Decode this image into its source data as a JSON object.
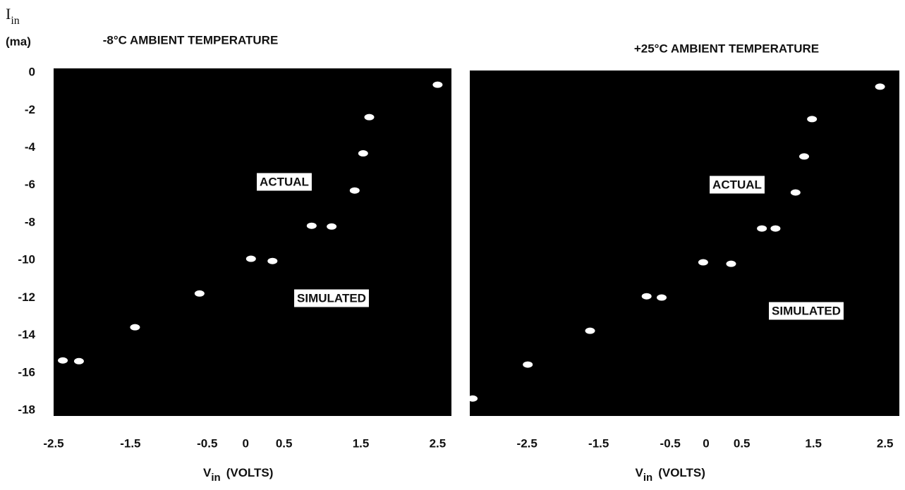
{
  "chart_data": [
    {
      "type": "scatter",
      "title": "-8°C AMBIENT TEMPERATURE",
      "ylabel": "I",
      "ylabel_sub": "in",
      "ylabel_unit": "(ma)",
      "xlabel": "V",
      "xlabel_sub": "in",
      "xlabel_unit": "(VOLTS)",
      "annotations": [
        "ACTUAL",
        "SIMULATED"
      ],
      "x": [
        2.5,
        1.61,
        1.53,
        1.42,
        0.86,
        1.12,
        0.07,
        0.35,
        -0.6,
        -1.44,
        -2.38,
        -2.17
      ],
      "values": [
        -0.64,
        -2.37,
        -4.3,
        -6.28,
        -8.16,
        -8.2,
        -9.92,
        -10.04,
        -11.77,
        -13.57,
        -15.34,
        -15.38
      ],
      "color": "#ffffff",
      "background": "#000000",
      "xlim": [
        -2.5,
        2.68
      ],
      "ylim": [
        -18.3,
        0.23
      ],
      "xticks": [
        -2.5,
        -1.5,
        -0.5,
        0,
        0.5,
        1.5,
        2.5
      ],
      "yticks": [
        0,
        -2,
        -4,
        -6,
        -8,
        -10,
        -12,
        -14,
        -16,
        -18
      ]
    },
    {
      "type": "scatter",
      "title": "+25°C AMBIENT TEMPERATURE",
      "xlabel": "V",
      "xlabel_sub": "in",
      "xlabel_unit": "(VOLTS)",
      "annotations": [
        "ACTUAL",
        "SIMULATED"
      ],
      "x": [
        2.43,
        1.48,
        1.37,
        1.25,
        0.78,
        0.97,
        -0.04,
        0.35,
        -0.83,
        -0.62,
        -1.62,
        -2.49,
        -3.26
      ],
      "values": [
        -0.75,
        -2.48,
        -4.47,
        -6.39,
        -8.31,
        -8.31,
        -10.11,
        -10.19,
        -11.92,
        -11.99,
        -13.76,
        -15.56,
        -17.37
      ],
      "color": "#ffffff",
      "background": "#000000",
      "xlim": [
        -3.3,
        2.7
      ],
      "ylim": [
        -18.3,
        0.11
      ],
      "xticks": [
        -2.5,
        -1.5,
        -0.5,
        0,
        0.5,
        1.5,
        2.5
      ]
    }
  ]
}
